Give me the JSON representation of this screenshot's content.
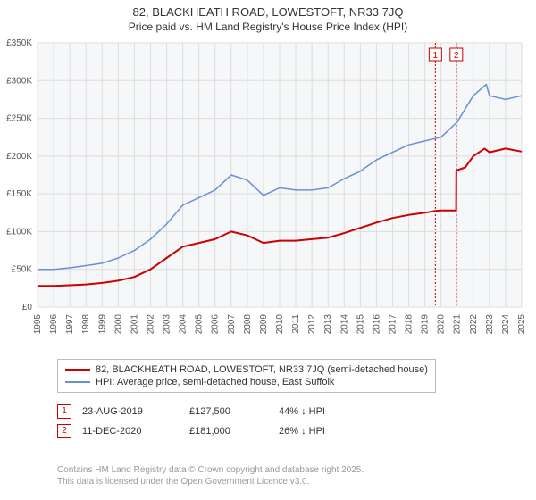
{
  "title_line1": "82, BLACKHEATH ROAD, LOWESTOFT, NR33 7JQ",
  "title_line2": "Price paid vs. HM Land Registry's House Price Index (HPI)",
  "chart": {
    "type": "line",
    "plot_bg": "#f6f7f8",
    "grid_color": "#dcdcdc",
    "x_years": [
      1995,
      1996,
      1997,
      1998,
      1999,
      2000,
      2001,
      2002,
      2003,
      2004,
      2005,
      2006,
      2007,
      2008,
      2009,
      2010,
      2011,
      2012,
      2013,
      2014,
      2015,
      2016,
      2017,
      2018,
      2019,
      2020,
      2021,
      2022,
      2023,
      2024,
      2025
    ],
    "ylim": [
      0,
      350000
    ],
    "ytick_step": 50000,
    "ytick_labels": [
      "£0",
      "£50K",
      "£100K",
      "£150K",
      "£200K",
      "£250K",
      "£300K",
      "£350K"
    ],
    "series": [
      {
        "name": "82, BLACKHEATH ROAD, LOWESTOFT, NR33 7JQ (semi-detached house)",
        "color": "#cc0000",
        "width": 2,
        "points": [
          [
            1995,
            28000
          ],
          [
            1996,
            28000
          ],
          [
            1997,
            29000
          ],
          [
            1998,
            30000
          ],
          [
            1999,
            32000
          ],
          [
            2000,
            35000
          ],
          [
            2001,
            40000
          ],
          [
            2002,
            50000
          ],
          [
            2003,
            65000
          ],
          [
            2004,
            80000
          ],
          [
            2005,
            85000
          ],
          [
            2006,
            90000
          ],
          [
            2007,
            100000
          ],
          [
            2008,
            95000
          ],
          [
            2009,
            85000
          ],
          [
            2010,
            88000
          ],
          [
            2011,
            88000
          ],
          [
            2012,
            90000
          ],
          [
            2013,
            92000
          ],
          [
            2014,
            98000
          ],
          [
            2015,
            105000
          ],
          [
            2016,
            112000
          ],
          [
            2017,
            118000
          ],
          [
            2018,
            122000
          ],
          [
            2019,
            125000
          ],
          [
            2019.65,
            127500
          ],
          [
            2020,
            128000
          ],
          [
            2020.94,
            128000
          ],
          [
            2020.95,
            181000
          ],
          [
            2021.5,
            185000
          ],
          [
            2022,
            200000
          ],
          [
            2022.7,
            210000
          ],
          [
            2023,
            205000
          ],
          [
            2024,
            210000
          ],
          [
            2025,
            206000
          ]
        ]
      },
      {
        "name": "HPI: Average price, semi-detached house, East Suffolk",
        "color": "#6b8fd4",
        "width": 1.5,
        "points": [
          [
            1995,
            50000
          ],
          [
            1996,
            50000
          ],
          [
            1997,
            52000
          ],
          [
            1998,
            55000
          ],
          [
            1999,
            58000
          ],
          [
            2000,
            65000
          ],
          [
            2001,
            75000
          ],
          [
            2002,
            90000
          ],
          [
            2003,
            110000
          ],
          [
            2004,
            135000
          ],
          [
            2005,
            145000
          ],
          [
            2006,
            155000
          ],
          [
            2007,
            175000
          ],
          [
            2008,
            168000
          ],
          [
            2009,
            148000
          ],
          [
            2010,
            158000
          ],
          [
            2011,
            155000
          ],
          [
            2012,
            155000
          ],
          [
            2013,
            158000
          ],
          [
            2014,
            170000
          ],
          [
            2015,
            180000
          ],
          [
            2016,
            195000
          ],
          [
            2017,
            205000
          ],
          [
            2018,
            215000
          ],
          [
            2019,
            220000
          ],
          [
            2020,
            225000
          ],
          [
            2021,
            245000
          ],
          [
            2022,
            280000
          ],
          [
            2022.8,
            295000
          ],
          [
            2023,
            280000
          ],
          [
            2024,
            275000
          ],
          [
            2025,
            280000
          ]
        ]
      }
    ],
    "markers": [
      {
        "id": "1",
        "x": 2019.65
      },
      {
        "id": "2",
        "x": 2020.95
      }
    ]
  },
  "legend": {
    "items": [
      {
        "color": "#cc0000",
        "label": "82, BLACKHEATH ROAD, LOWESTOFT, NR33 7JQ (semi-detached house)"
      },
      {
        "color": "#6b8fd4",
        "label": "HPI: Average price, semi-detached house, East Suffolk"
      }
    ]
  },
  "data_rows": [
    {
      "id": "1",
      "date": "23-AUG-2019",
      "price": "£127,500",
      "pct": "44% ↓ HPI"
    },
    {
      "id": "2",
      "date": "11-DEC-2020",
      "price": "£181,000",
      "pct": "26% ↓ HPI"
    }
  ],
  "attribution": {
    "line1": "Contains HM Land Registry data © Crown copyright and database right 2025.",
    "line2": "This data is licensed under the Open Government Licence v3.0."
  }
}
